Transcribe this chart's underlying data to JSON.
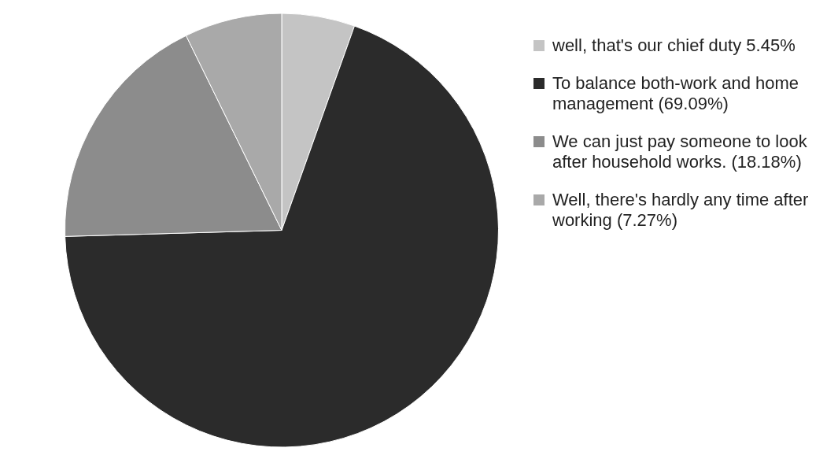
{
  "chart_data": {
    "type": "pie",
    "categories": [
      "well, that's our chief duty 5.45%",
      "To balance both-work and home management (69.09%)",
      "We can just pay someone to look after household works. (18.18%)",
      "Well, there's hardly any time after working (7.27%)"
    ],
    "values": [
      5.45,
      69.09,
      18.18,
      7.27
    ],
    "colors": [
      "#c4c4c4",
      "#2b2b2b",
      "#8c8c8c",
      "#a9a9a9"
    ],
    "legend": "right"
  }
}
